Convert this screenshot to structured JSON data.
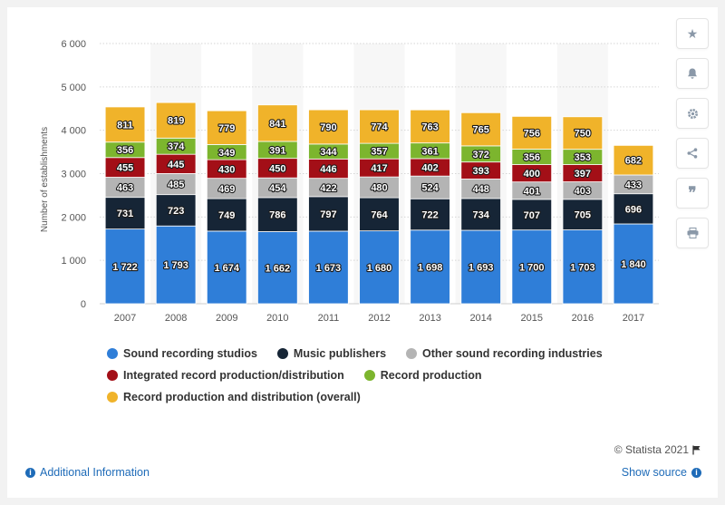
{
  "chart_data": {
    "type": "bar",
    "stacked": true,
    "title": "",
    "xlabel": "",
    "ylabel": "Number of establishments",
    "ylim": [
      0,
      6000
    ],
    "yticks": [
      0,
      1000,
      2000,
      3000,
      4000,
      5000,
      6000
    ],
    "ytick_labels": [
      "0",
      "1 000",
      "2 000",
      "3 000",
      "4 000",
      "5 000",
      "6 000"
    ],
    "grid": true,
    "legend_position": "bottom",
    "categories": [
      "2007",
      "2008",
      "2009",
      "2010",
      "2011",
      "2012",
      "2013",
      "2014",
      "2015",
      "2016",
      "2017"
    ],
    "series": [
      {
        "name": "Sound recording studios",
        "color": "#2f7ed8",
        "values": [
          1722,
          1793,
          1674,
          1662,
          1673,
          1680,
          1698,
          1693,
          1700,
          1703,
          1840
        ],
        "labels": [
          "1 722",
          "1 793",
          "1 674",
          "1 662",
          "1 673",
          "1 680",
          "1 698",
          "1 693",
          "1 700",
          "1 703",
          "1 840"
        ]
      },
      {
        "name": "Music publishers",
        "color": "#162536",
        "values": [
          731,
          723,
          749,
          786,
          797,
          764,
          722,
          734,
          707,
          705,
          696
        ],
        "labels": [
          "731",
          "723",
          "749",
          "786",
          "797",
          "764",
          "722",
          "734",
          "707",
          "705",
          "696"
        ]
      },
      {
        "name": "Other sound recording industries",
        "color": "#b4b4b4",
        "values": [
          463,
          485,
          469,
          454,
          422,
          480,
          524,
          448,
          401,
          403,
          433
        ],
        "labels": [
          "463",
          "485",
          "469",
          "454",
          "422",
          "480",
          "524",
          "448",
          "401",
          "403",
          "433"
        ]
      },
      {
        "name": "Integrated record production/distribution",
        "color": "#a30f17",
        "values": [
          455,
          445,
          430,
          450,
          446,
          417,
          402,
          393,
          400,
          397,
          null
        ],
        "labels": [
          "455",
          "445",
          "430",
          "450",
          "446",
          "417",
          "402",
          "393",
          "400",
          "397",
          ""
        ]
      },
      {
        "name": "Record production",
        "color": "#7cb52e",
        "values": [
          356,
          374,
          349,
          391,
          344,
          357,
          361,
          372,
          356,
          353,
          null
        ],
        "labels": [
          "356",
          "374",
          "349",
          "391",
          "344",
          "357",
          "361",
          "372",
          "356",
          "353",
          ""
        ]
      },
      {
        "name": "Record production and distribution (overall)",
        "color": "#f0b32a",
        "values": [
          811,
          819,
          779,
          841,
          790,
          774,
          763,
          765,
          756,
          750,
          682
        ],
        "labels": [
          "811",
          "819",
          "779",
          "841",
          "790",
          "774",
          "763",
          "765",
          "756",
          "750",
          "682"
        ]
      }
    ]
  },
  "footer": {
    "credit": "© Statista 2021",
    "additional_info": "Additional Information",
    "show_source": "Show source"
  },
  "sidebar": {
    "icons": [
      "star-icon",
      "bell-icon",
      "gear-icon",
      "share-icon",
      "quote-icon",
      "print-icon"
    ]
  }
}
